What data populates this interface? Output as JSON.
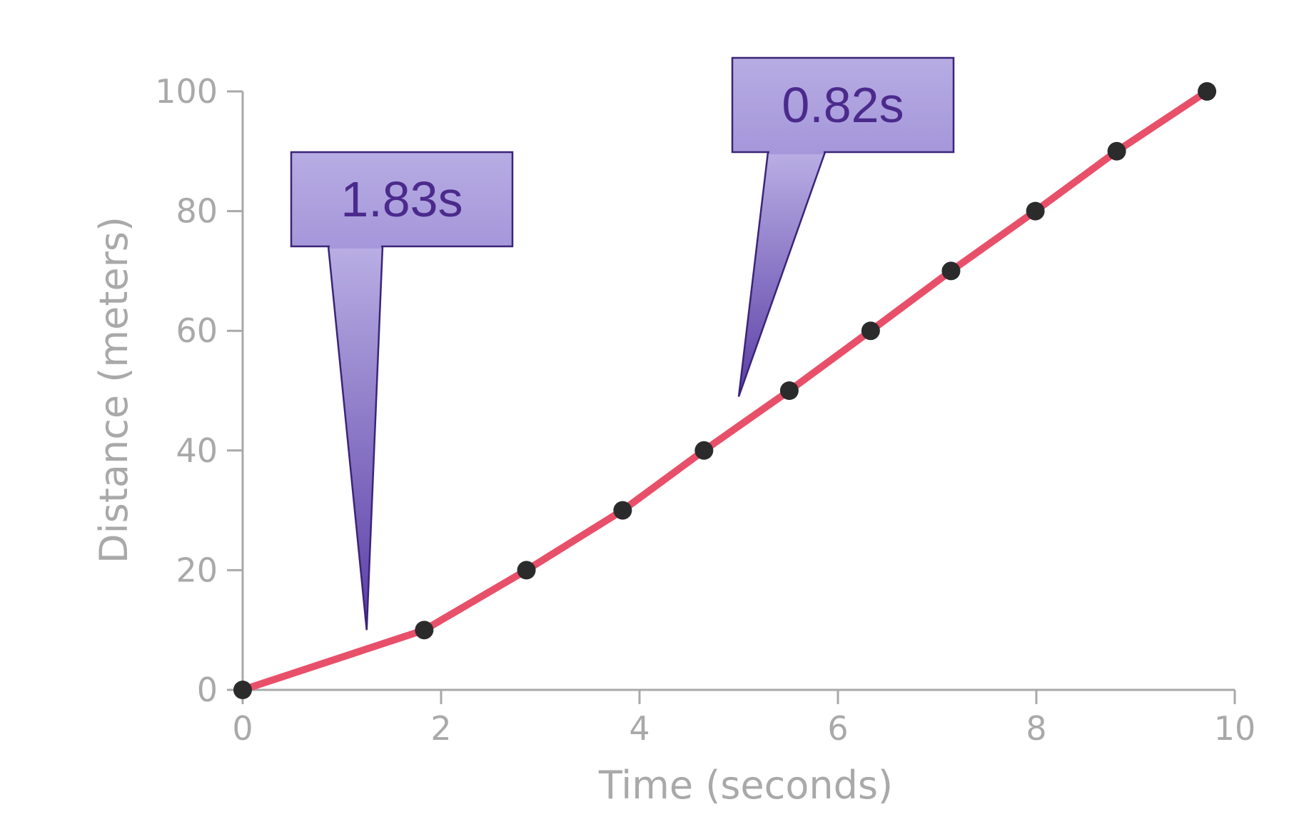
{
  "chart_data": {
    "type": "line",
    "xlabel": "Time (seconds)",
    "ylabel": "Distance (meters)",
    "xlim": [
      0,
      10
    ],
    "ylim": [
      0,
      100
    ],
    "xticks": [
      "0",
      "2",
      "4",
      "6",
      "8",
      "10"
    ],
    "yticks": [
      "0",
      "20",
      "40",
      "60",
      "80",
      "100"
    ],
    "grid": false,
    "series": [
      {
        "color": "#e8506a",
        "marker_color": "#2b2b2b",
        "x": [
          0,
          1.83,
          2.86,
          3.83,
          4.65,
          5.51,
          6.33,
          7.14,
          7.99,
          8.81,
          9.72
        ],
        "y": [
          0,
          10,
          20,
          30,
          40,
          50,
          60,
          70,
          80,
          90,
          100
        ]
      }
    ],
    "annotations": [
      {
        "text": "1.83s",
        "x": 1.25,
        "y": 10
      },
      {
        "text": "0.82s",
        "x": 5.0,
        "y": 49
      }
    ]
  },
  "colors": {
    "axis": "#a9a9a9",
    "callout_fill_top": "#b9aee4",
    "callout_fill_bottom": "#5a3ea6",
    "callout_border": "#3b2478"
  }
}
